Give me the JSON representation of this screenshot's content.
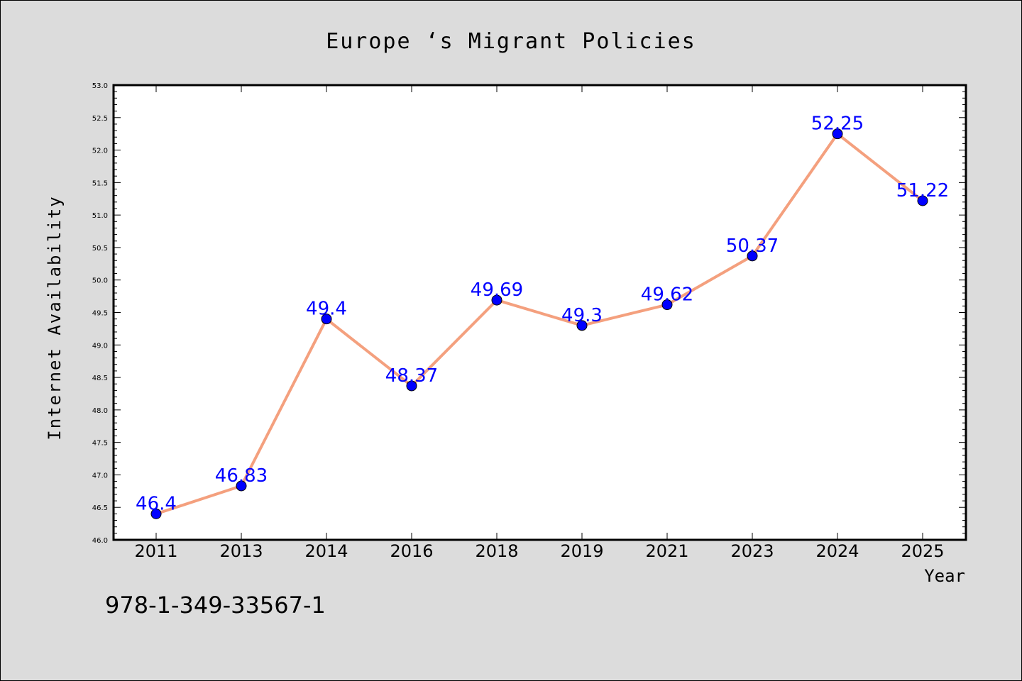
{
  "chart_data": {
    "type": "line",
    "title": "Europe ‘s Migrant Policies",
    "xlabel": "Year",
    "ylabel": "Internet Availability",
    "categories": [
      "2011",
      "2013",
      "2014",
      "2016",
      "2018",
      "2019",
      "2021",
      "2023",
      "2024",
      "2025"
    ],
    "series": [
      {
        "values": [
          46.4,
          46.83,
          49.4,
          48.37,
          49.69,
          49.3,
          49.62,
          50.37,
          52.25,
          51.22
        ],
        "data_labels": [
          "46.4",
          "46.83",
          "49.4",
          "48.37",
          "49.69",
          "49.3",
          "49.62",
          "50.37",
          "52.25",
          "51.22"
        ]
      }
    ],
    "ylim": [
      46.0,
      53.0
    ],
    "yticks": [
      "46.0",
      "46.5",
      "47.0",
      "47.5",
      "48.0",
      "48.5",
      "49.0",
      "49.5",
      "50.0",
      "50.5",
      "51.0",
      "51.5",
      "52.0",
      "52.5",
      "53.0"
    ],
    "grid": false,
    "legend": "none",
    "colors": {
      "line": "#f4a07e",
      "marker": "#0000ff",
      "data_label": "#0000ff",
      "plot_background": "#ffffff",
      "figure_background": "#dcdcdc"
    }
  },
  "footnote": "978-1-349-33567-1"
}
